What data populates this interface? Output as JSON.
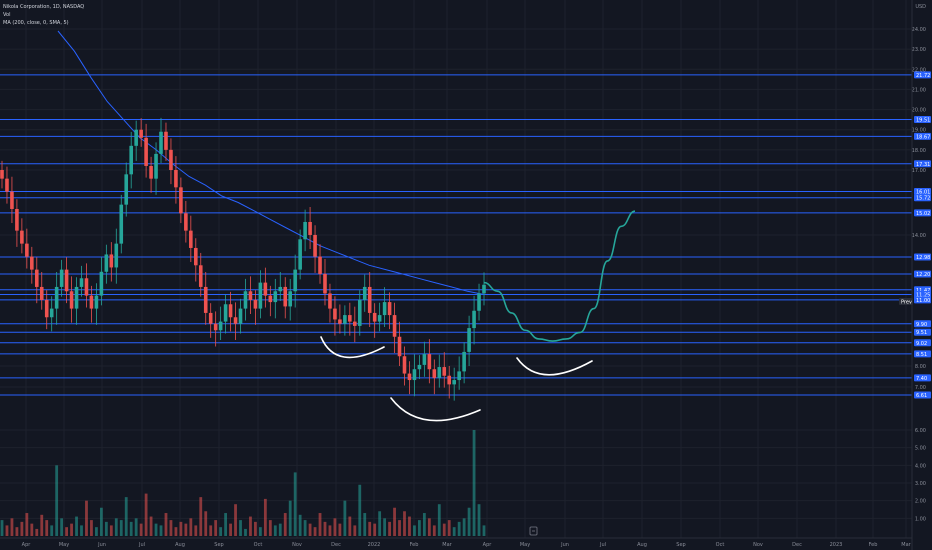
{
  "header": {
    "symbol_line": "Nikola Corporation, 1D, NASDAQ",
    "vol_label": "Vol",
    "ma_label": "MA (200, close, 0, SMA, 5)"
  },
  "chart_data": {
    "type": "candlestick",
    "title": "Nikola Corporation, 1D, NASDAQ",
    "currency_label": "USD",
    "x_axis_labels": [
      "Apr",
      "May",
      "Jun",
      "Jul",
      "Aug",
      "Sep",
      "Oct",
      "Nov",
      "Dec",
      "2022",
      "Feb",
      "Mar",
      "Apr",
      "May",
      "Jun",
      "Jul",
      "Aug",
      "Sep",
      "Oct",
      "Nov",
      "Dec",
      "2023",
      "Feb",
      "Mar"
    ],
    "y_ticks": [
      "24.00",
      "23.00",
      "22.00",
      "21.00",
      "20.00",
      "19.00",
      "18.00",
      "17.00",
      "14.00",
      "8.00",
      "7.00",
      "6.00",
      "5.00",
      "4.00",
      "3.00",
      "2.00",
      "1.00"
    ],
    "y_tick_values": [
      24,
      23,
      22,
      21,
      20,
      19,
      18,
      17,
      14,
      8,
      7,
      6,
      5,
      4,
      3,
      2,
      1
    ],
    "vol_axis_ticks": [
      "6.00",
      "5.00",
      "4.00",
      "3.00",
      "2.00",
      "1.00"
    ],
    "horizontal_levels": [
      "21.72",
      "19.51",
      "18.67",
      "17.31",
      "16.01",
      "15.72",
      "15.02",
      "12.98",
      "12.20",
      "11.47",
      "11.25",
      "11.00",
      "9.90",
      "9.51",
      "9.02",
      "8.51",
      "7.40",
      "6.61"
    ],
    "price_tag": {
      "label": "Prev",
      "value": "11.25"
    },
    "price_series_close": [
      16.6,
      16.0,
      15.2,
      14.2,
      13.6,
      13.0,
      12.4,
      11.6,
      11.0,
      10.2,
      10.6,
      11.6,
      12.4,
      11.4,
      10.6,
      11.6,
      12.0,
      11.2,
      10.6,
      11.2,
      12.3,
      13.1,
      12.5,
      13.6,
      15.4,
      16.8,
      18.2,
      19.0,
      18.6,
      17.2,
      16.6,
      17.8,
      18.9,
      18.0,
      17.0,
      16.2,
      15.0,
      14.2,
      13.4,
      12.6,
      11.6,
      10.4,
      9.9,
      9.6,
      10.0,
      10.8,
      10.2,
      9.9,
      10.6,
      11.4,
      11.0,
      10.6,
      11.8,
      11.2,
      10.9,
      11.4,
      11.6,
      10.7,
      11.4,
      12.4,
      13.8,
      14.6,
      14.0,
      13.0,
      12.2,
      11.3,
      10.6,
      10.1,
      9.9,
      10.3,
      10.0,
      9.8,
      11.0,
      11.6,
      10.4,
      10.0,
      10.3,
      10.9,
      10.3,
      9.3,
      8.4,
      7.6,
      7.3,
      7.8,
      8.0,
      8.5,
      7.8,
      7.4,
      7.9,
      7.5,
      7.1,
      7.3,
      7.7,
      8.6,
      9.7,
      10.5,
      11.3,
      11.7
    ],
    "ma200_series": [
      23.9,
      22.9,
      21.6,
      20.4,
      19.5,
      18.6,
      18.0,
      17.3,
      16.7,
      16.3,
      15.8,
      15.5,
      15.1,
      14.7,
      14.3,
      13.9,
      13.5,
      13.2,
      12.9,
      12.6,
      12.4,
      12.2,
      12.0,
      11.8,
      11.6,
      11.4,
      11.25
    ],
    "projection_series": [
      11.8,
      11.4,
      10.4,
      9.6,
      9.2,
      9.1,
      9.2,
      9.5,
      10.6,
      12.8,
      14.4,
      15.1
    ],
    "volume_series": [
      0.9,
      0.6,
      1.0,
      0.5,
      0.8,
      1.3,
      0.7,
      0.4,
      1.2,
      0.9,
      0.6,
      4.0,
      1.0,
      0.5,
      0.7,
      1.1,
      0.6,
      2.0,
      0.9,
      0.5,
      1.6,
      0.8,
      0.6,
      1.0,
      0.9,
      2.2,
      0.8,
      1.0,
      0.7,
      2.4,
      1.1,
      0.7,
      0.6,
      1.3,
      0.9,
      0.5,
      0.8,
      0.7,
      1.0,
      0.6,
      2.2,
      1.4,
      0.6,
      0.9,
      0.5,
      1.3,
      0.7,
      1.8,
      0.9,
      0.4,
      1.1,
      0.8,
      0.5,
      2.1,
      0.9,
      0.6,
      0.7,
      1.3,
      2.0,
      3.6,
      1.2,
      0.9,
      0.7,
      0.5,
      1.3,
      0.8,
      0.6,
      1.0,
      0.7,
      2.0,
      1.1,
      0.6,
      2.9,
      1.3,
      0.8,
      0.7,
      1.4,
      1.0,
      0.8,
      1.6,
      0.9,
      1.4,
      1.1,
      0.6,
      0.9,
      1.3,
      1.0,
      0.6,
      1.8,
      0.7,
      0.9,
      0.5,
      0.8,
      1.0,
      1.6,
      6.0,
      1.8,
      0.6
    ],
    "colors": {
      "up": "#26a69a",
      "down": "#ef5350",
      "ma": "#2962ff",
      "level": "#2962ff",
      "projection": "#26a69a",
      "arc": "#ffffff",
      "grid": "#1e222d"
    }
  }
}
